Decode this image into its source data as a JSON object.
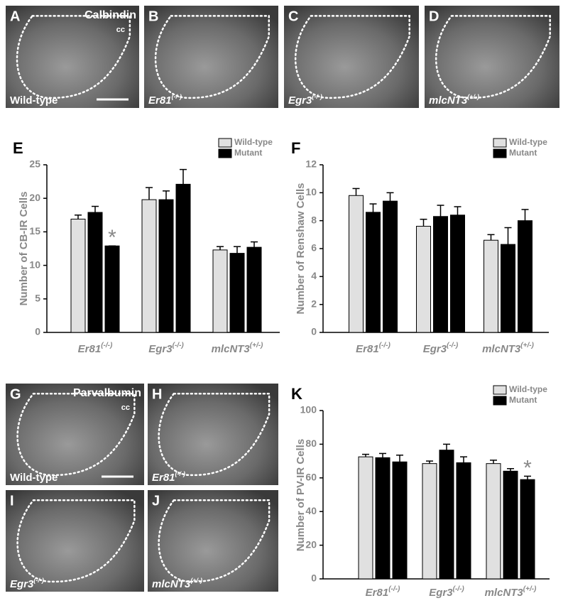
{
  "images": [
    {
      "letter": "A",
      "stain": "Calbindin",
      "marker": "cc",
      "genotype": "Wild-type"
    },
    {
      "letter": "B",
      "genotype": "Er81",
      "genotype_sup": "(-/-)"
    },
    {
      "letter": "C",
      "genotype": "Egr3",
      "genotype_sup": "(-/-)"
    },
    {
      "letter": "D",
      "genotype": "mlcNT3",
      "genotype_sup": "(+/-)"
    },
    {
      "letter": "G",
      "stain": "Parvalbumin",
      "marker": "cc",
      "genotype": "Wild-type"
    },
    {
      "letter": "H",
      "genotype": "Er81",
      "genotype_sup": "(-/-)"
    },
    {
      "letter": "I",
      "genotype": "Egr3",
      "genotype_sup": "(-/-)"
    },
    {
      "letter": "J",
      "genotype": "mlcNT3",
      "genotype_sup": "(+/-)"
    }
  ],
  "chart_data": [
    {
      "type": "bar",
      "panel": "E",
      "y_label": "Number of CB-IR Cells",
      "categories": [
        "Er81",
        "Egr3",
        "mlcNT3"
      ],
      "category_superscripts": [
        "(-/-)",
        "(-/-)",
        "(+/-)"
      ],
      "series": [
        {
          "name": "Wild-type",
          "color": "#e0e0e0",
          "values": [
            16.9,
            19.8,
            12.3
          ],
          "errors": [
            0.6,
            1.8,
            0.5
          ]
        },
        {
          "name": "Mutant",
          "color": "#000000",
          "values": [
            17.9,
            19.8,
            11.8
          ],
          "errors": [
            0.9,
            1.3,
            1.0
          ]
        },
        {
          "color": "#000000",
          "values": [
            12.9,
            22.1,
            12.7
          ],
          "errors": [
            0,
            2.2,
            0.8
          ]
        }
      ],
      "annotations": [
        "*"
      ],
      "ylim": [
        0,
        25
      ],
      "yticks": [
        0,
        5,
        10,
        15,
        20,
        25
      ]
    },
    {
      "type": "bar",
      "panel": "F",
      "y_label": "Number of Renshaw Cells",
      "categories": [
        "Er81",
        "Egr3",
        "mlcNT3"
      ],
      "category_superscripts": [
        "(-/-)",
        "(-/-)",
        "(+/-)"
      ],
      "series": [
        {
          "name": "Wild-type",
          "color": "#e0e0e0",
          "values": [
            9.8,
            7.6,
            6.6
          ],
          "errors": [
            0.5,
            0.5,
            0.4
          ]
        },
        {
          "name": "Mutant",
          "color": "#000000",
          "values": [
            8.6,
            8.3,
            6.3
          ],
          "errors": [
            0.6,
            0.8,
            1.2
          ]
        },
        {
          "color": "#000000",
          "values": [
            9.4,
            8.4,
            8.0
          ],
          "errors": [
            0.6,
            0.6,
            0.8
          ]
        }
      ],
      "ylim": [
        0,
        12
      ],
      "yticks": [
        0,
        2,
        4,
        6,
        8,
        10,
        12
      ]
    },
    {
      "type": "bar",
      "panel": "K",
      "y_label": "Number of PV-IR Cells",
      "categories": [
        "Er81",
        "Egr3",
        "mlcNT3"
      ],
      "category_superscripts": [
        "(-/-)",
        "(-/-)",
        "(+/-)"
      ],
      "series": [
        {
          "name": "Wild-type",
          "color": "#e0e0e0",
          "values": [
            72.5,
            68.5,
            68.5
          ],
          "errors": [
            1.5,
            1.5,
            2
          ]
        },
        {
          "name": "Mutant",
          "color": "#000000",
          "values": [
            72,
            76.5,
            64
          ],
          "errors": [
            2.5,
            3.5,
            1.5
          ]
        },
        {
          "color": "#000000",
          "values": [
            69.5,
            69,
            59
          ],
          "errors": [
            4,
            3.5,
            2
          ]
        }
      ],
      "annotations": [
        "*"
      ],
      "ylim": [
        0,
        100
      ],
      "yticks": [
        0,
        20,
        40,
        60,
        80,
        100
      ]
    }
  ]
}
